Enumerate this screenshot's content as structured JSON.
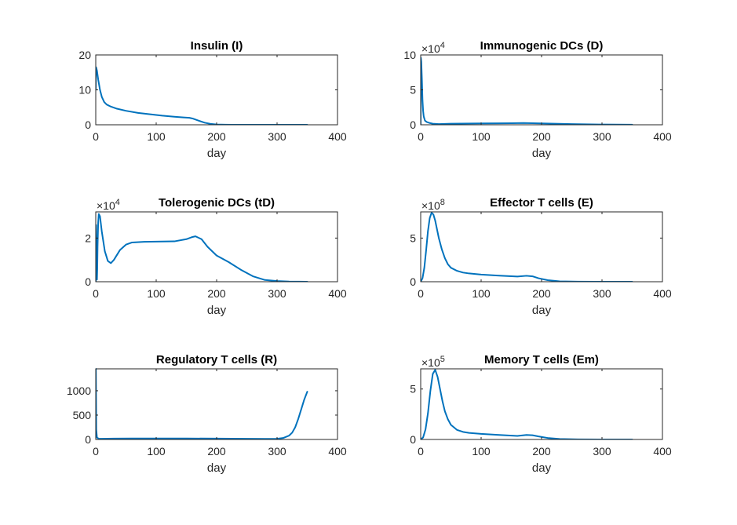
{
  "chart_data": [
    {
      "type": "line",
      "title": "Insulin (I)",
      "xlabel": "day",
      "ylabel": "",
      "xlim": [
        0,
        400
      ],
      "ylim": [
        0,
        20
      ],
      "xticks": [
        0,
        100,
        200,
        300,
        400
      ],
      "yticks": [
        0,
        10,
        20
      ],
      "xtick_labels": [
        "0",
        "100",
        "200",
        "300",
        "400"
      ],
      "ytick_labels": [
        "0",
        "10",
        "20"
      ],
      "exponent": null,
      "grid": false,
      "series": [
        {
          "color": "#0072BD",
          "x": [
            0,
            0.5,
            2,
            4,
            7,
            10,
            14,
            18,
            25,
            35,
            50,
            70,
            90,
            110,
            130,
            145,
            155,
            160,
            170,
            180,
            190,
            200,
            215,
            230,
            260,
            300,
            350
          ],
          "y": [
            10,
            16.5,
            15.5,
            13.0,
            10.0,
            8.0,
            6.5,
            5.8,
            5.2,
            4.6,
            4.0,
            3.4,
            3.0,
            2.6,
            2.3,
            2.1,
            2.0,
            1.8,
            1.2,
            0.6,
            0.25,
            0.08,
            0.03,
            0.01,
            0,
            0,
            0
          ]
        }
      ]
    },
    {
      "type": "line",
      "title": "Immunogenic DCs (D)",
      "xlabel": "day",
      "ylabel": "",
      "xlim": [
        0,
        400
      ],
      "ylim": [
        0,
        10
      ],
      "xticks": [
        0,
        100,
        200,
        300,
        400
      ],
      "yticks": [
        0,
        5,
        10
      ],
      "xtick_labels": [
        "0",
        "100",
        "200",
        "300",
        "400"
      ],
      "ytick_labels": [
        "0",
        "5",
        "10"
      ],
      "exponent": 4,
      "grid": false,
      "series": [
        {
          "color": "#0072BD",
          "x": [
            0,
            0.3,
            1,
            2,
            3,
            4,
            5,
            7,
            10,
            15,
            20,
            30,
            50,
            100,
            150,
            170,
            200,
            250,
            300,
            350
          ],
          "y": [
            0,
            9.6,
            9.0,
            6.5,
            3.5,
            2.0,
            1.2,
            0.6,
            0.4,
            0.25,
            0.15,
            0.1,
            0.15,
            0.2,
            0.22,
            0.25,
            0.2,
            0.1,
            0.04,
            0.01
          ]
        }
      ]
    },
    {
      "type": "line",
      "title": "Tolerogenic DCs (tD)",
      "xlabel": "day",
      "ylabel": "",
      "xlim": [
        0,
        400
      ],
      "ylim": [
        0,
        3.2
      ],
      "xticks": [
        0,
        100,
        200,
        300,
        400
      ],
      "yticks": [
        0,
        2
      ],
      "xtick_labels": [
        "0",
        "100",
        "200",
        "300",
        "400"
      ],
      "ytick_labels": [
        "0",
        "2"
      ],
      "exponent": 4,
      "grid": false,
      "series": [
        {
          "color": "#0072BD",
          "x": [
            0,
            0.5,
            1,
            1.5,
            2,
            2.5,
            3,
            4,
            5,
            7,
            10,
            15,
            20,
            25,
            30,
            40,
            50,
            60,
            80,
            100,
            130,
            150,
            160,
            165,
            175,
            185,
            200,
            220,
            240,
            260,
            280,
            300,
            320,
            350
          ],
          "y": [
            0,
            2.6,
            1.5,
            0.3,
            0.1,
            0.6,
            1.6,
            2.7,
            3.1,
            3.0,
            2.3,
            1.4,
            0.95,
            0.85,
            1.0,
            1.45,
            1.7,
            1.8,
            1.83,
            1.84,
            1.85,
            1.95,
            2.05,
            2.08,
            1.95,
            1.6,
            1.2,
            0.9,
            0.55,
            0.25,
            0.08,
            0.03,
            0.01,
            0
          ]
        }
      ]
    },
    {
      "type": "line",
      "title": "Effector T cells (E)",
      "xlabel": "day",
      "ylabel": "",
      "xlim": [
        0,
        400
      ],
      "ylim": [
        0,
        8
      ],
      "xticks": [
        0,
        100,
        200,
        300,
        400
      ],
      "yticks": [
        0,
        5
      ],
      "xtick_labels": [
        "0",
        "100",
        "200",
        "300",
        "400"
      ],
      "ytick_labels": [
        "0",
        "5"
      ],
      "exponent": 8,
      "grid": false,
      "series": [
        {
          "color": "#0072BD",
          "x": [
            0,
            3,
            6,
            9,
            12,
            15,
            18,
            21,
            24,
            27,
            30,
            35,
            40,
            45,
            50,
            60,
            70,
            80,
            100,
            130,
            160,
            175,
            185,
            195,
            210,
            230,
            260,
            300,
            350
          ],
          "y": [
            0,
            0.4,
            1.6,
            3.6,
            5.8,
            7.3,
            7.9,
            7.7,
            7.0,
            6.0,
            5.0,
            3.7,
            2.7,
            2.0,
            1.6,
            1.25,
            1.05,
            0.95,
            0.82,
            0.7,
            0.6,
            0.68,
            0.62,
            0.4,
            0.18,
            0.05,
            0.01,
            0,
            0
          ]
        }
      ]
    },
    {
      "type": "line",
      "title": "Regulatory T cells (R)",
      "xlabel": "day",
      "ylabel": "",
      "xlim": [
        0,
        400
      ],
      "ylim": [
        0,
        1450
      ],
      "xticks": [
        0,
        100,
        200,
        300,
        400
      ],
      "yticks": [
        0,
        500,
        1000
      ],
      "xtick_labels": [
        "0",
        "100",
        "200",
        "300",
        "400"
      ],
      "ytick_labels": [
        "0",
        "500",
        "1000"
      ],
      "exponent": null,
      "grid": false,
      "series": [
        {
          "color": "#0072BD",
          "x": [
            0,
            0.2,
            0.8,
            2,
            5,
            10,
            30,
            60,
            100,
            150,
            200,
            250,
            280,
            300,
            310,
            320,
            325,
            330,
            335,
            340,
            345,
            350
          ],
          "y": [
            1450,
            1450,
            200,
            40,
            15,
            15,
            18,
            20,
            20,
            20,
            18,
            15,
            12,
            15,
            30,
            80,
            140,
            250,
            420,
            620,
            820,
            980
          ]
        }
      ]
    },
    {
      "type": "line",
      "title": "Memory T cells (Em)",
      "xlabel": "day",
      "ylabel": "",
      "xlim": [
        0,
        400
      ],
      "ylim": [
        0,
        7
      ],
      "xticks": [
        0,
        100,
        200,
        300,
        400
      ],
      "yticks": [
        0,
        5
      ],
      "xtick_labels": [
        "0",
        "100",
        "200",
        "300",
        "400"
      ],
      "ytick_labels": [
        "0",
        "5"
      ],
      "exponent": 5,
      "grid": false,
      "series": [
        {
          "color": "#0072BD",
          "x": [
            0,
            4,
            8,
            12,
            16,
            20,
            24,
            28,
            32,
            36,
            40,
            45,
            50,
            60,
            70,
            80,
            100,
            130,
            160,
            175,
            185,
            195,
            210,
            230,
            260,
            300,
            350
          ],
          "y": [
            0,
            0.2,
            1.0,
            2.6,
            4.8,
            6.5,
            6.9,
            6.2,
            5.0,
            3.8,
            2.8,
            2.0,
            1.45,
            0.95,
            0.75,
            0.65,
            0.55,
            0.45,
            0.35,
            0.45,
            0.42,
            0.3,
            0.15,
            0.05,
            0.01,
            0,
            0
          ]
        }
      ]
    }
  ]
}
